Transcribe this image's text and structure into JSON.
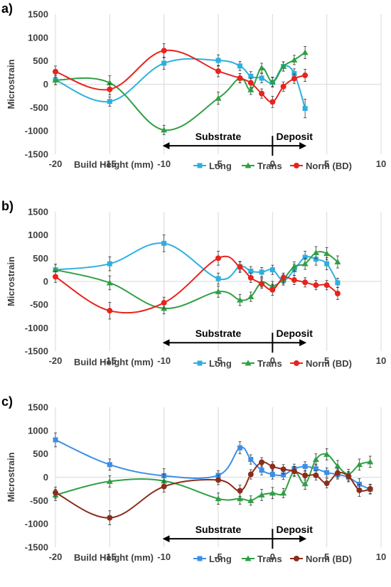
{
  "chart_data": [
    {
      "type": "line",
      "panel_label": "a)",
      "xlabel": "Build Height (mm)",
      "ylabel": "Microstrain",
      "xlim": [
        -20,
        10
      ],
      "ylim": [
        -1500,
        1500
      ],
      "xticks": [
        "-20",
        "-15",
        "-10",
        "-5",
        "0",
        "5",
        "10"
      ],
      "yticks": [
        "1500",
        "1000",
        "500",
        "0",
        "-500",
        "-1000",
        "-1500"
      ],
      "grid": "vertical",
      "legend_position": "bottom",
      "annotations": {
        "substrate": "Substrate",
        "deposit": "Deposit"
      },
      "series": [
        {
          "name": "Long",
          "color": "#2bb0e0",
          "marker": "square",
          "x": [
            -20,
            -15,
            -10,
            -5,
            -3,
            -2,
            -1,
            0,
            1,
            2,
            3
          ],
          "y": [
            90,
            -370,
            450,
            510,
            390,
            170,
            130,
            40,
            380,
            230,
            -520
          ],
          "err": [
            100,
            100,
            130,
            120,
            100,
            100,
            100,
            100,
            100,
            100,
            200
          ]
        },
        {
          "name": "Trans",
          "color": "#2ea043",
          "marker": "triangle",
          "x": [
            -20,
            -15,
            -10,
            -5,
            -3,
            -2,
            -1,
            0,
            1,
            2,
            3
          ],
          "y": [
            90,
            30,
            -980,
            -300,
            130,
            -120,
            350,
            50,
            380,
            520,
            680
          ],
          "err": [
            100,
            150,
            100,
            130,
            100,
            100,
            100,
            100,
            100,
            100,
            130
          ]
        },
        {
          "name": "Norm (BD)",
          "color": "#e8231e",
          "marker": "circle",
          "x": [
            -20,
            -15,
            -10,
            -5,
            -3,
            -2,
            -1,
            0,
            1,
            2,
            3
          ],
          "y": [
            270,
            -110,
            720,
            280,
            130,
            30,
            -200,
            -380,
            -50,
            120,
            190
          ],
          "err": [
            120,
            120,
            150,
            120,
            100,
            100,
            100,
            120,
            100,
            100,
            130
          ]
        }
      ]
    },
    {
      "type": "line",
      "panel_label": "b)",
      "xlabel": "Build Height (mm)",
      "ylabel": "Microstrain",
      "xlim": [
        -20,
        10
      ],
      "ylim": [
        -1500,
        1500
      ],
      "xticks": [
        "-20",
        "-15",
        "-10",
        "-5",
        "0",
        "5",
        "10"
      ],
      "yticks": [
        "1500",
        "1000",
        "500",
        "0",
        "-500",
        "-1000",
        "-1500"
      ],
      "grid": "vertical",
      "legend_position": "bottom",
      "annotations": {
        "substrate": "Substrate",
        "deposit": "Deposit"
      },
      "series": [
        {
          "name": "Long",
          "color": "#2bb0e0",
          "marker": "square",
          "x": [
            -20,
            -15,
            -10,
            -5,
            -3,
            -2,
            -1,
            0,
            1,
            2,
            3,
            4,
            5,
            6
          ],
          "y": [
            250,
            380,
            820,
            60,
            320,
            220,
            200,
            250,
            20,
            250,
            520,
            480,
            380,
            -30
          ],
          "err": [
            120,
            150,
            180,
            120,
            100,
            100,
            100,
            100,
            100,
            120,
            130,
            130,
            130,
            100
          ]
        },
        {
          "name": "Trans",
          "color": "#2ea043",
          "marker": "triangle",
          "x": [
            -20,
            -15,
            -10,
            -5,
            -3,
            -2,
            -1,
            0,
            1,
            2,
            3,
            4,
            5,
            6
          ],
          "y": [
            250,
            -30,
            -580,
            -220,
            -400,
            -330,
            -20,
            -100,
            50,
            320,
            380,
            620,
            600,
            420
          ],
          "err": [
            120,
            150,
            120,
            120,
            120,
            100,
            100,
            100,
            100,
            100,
            120,
            130,
            130,
            130
          ]
        },
        {
          "name": "Norm (BD)",
          "color": "#e8231e",
          "marker": "circle",
          "x": [
            -20,
            -15,
            -10,
            -5,
            -3,
            -2,
            -1,
            0,
            1,
            2,
            3,
            4,
            5,
            6
          ],
          "y": [
            100,
            -630,
            -460,
            500,
            310,
            80,
            -50,
            -180,
            80,
            30,
            -20,
            -80,
            -80,
            -260
          ],
          "err": [
            120,
            180,
            120,
            150,
            120,
            100,
            100,
            120,
            100,
            100,
            100,
            100,
            100,
            130
          ]
        }
      ]
    },
    {
      "type": "line",
      "panel_label": "c)",
      "xlabel": "Build Height (mm)",
      "ylabel": "Microstrain",
      "xlim": [
        -20,
        10
      ],
      "ylim": [
        -1500,
        1500
      ],
      "xticks": [
        "-20",
        "-15",
        "-10",
        "-5",
        "0",
        "5",
        "10"
      ],
      "yticks": [
        "1500",
        "1000",
        "500",
        "0",
        "-500",
        "-1000",
        "-1500"
      ],
      "grid": "vertical",
      "legend_position": "bottom",
      "annotations": {
        "substrate": "Substrate",
        "deposit": "Deposit"
      },
      "series": [
        {
          "name": "Long",
          "color": "#3b8ee8",
          "marker": "square",
          "x": [
            -20,
            -15,
            -10,
            -5,
            -3,
            -2,
            -1,
            0,
            1,
            2,
            3,
            4,
            5,
            6,
            7,
            8,
            9
          ],
          "y": [
            800,
            270,
            30,
            40,
            630,
            380,
            150,
            60,
            50,
            180,
            230,
            180,
            100,
            60,
            0,
            -150,
            -260
          ],
          "err": [
            150,
            120,
            150,
            100,
            130,
            100,
            100,
            100,
            100,
            100,
            100,
            100,
            100,
            100,
            100,
            120,
            100
          ]
        },
        {
          "name": "Trans",
          "color": "#2ea043",
          "marker": "triangle",
          "x": [
            -20,
            -15,
            -10,
            -5,
            -3,
            -2,
            -1,
            0,
            1,
            2,
            3,
            4,
            5,
            6,
            7,
            8,
            9
          ],
          "y": [
            -380,
            -90,
            -80,
            -460,
            -460,
            -500,
            -380,
            -340,
            -340,
            120,
            -140,
            380,
            490,
            240,
            70,
            270,
            330
          ],
          "err": [
            120,
            120,
            150,
            120,
            120,
            100,
            120,
            120,
            100,
            100,
            120,
            120,
            120,
            120,
            100,
            120,
            120
          ]
        },
        {
          "name": "Norm (BD)",
          "color": "#8b2d1a",
          "marker": "circle",
          "x": [
            -20,
            -15,
            -10,
            -5,
            -3,
            -2,
            -1,
            0,
            1,
            2,
            3,
            4,
            5,
            6,
            7,
            8,
            9
          ],
          "y": [
            -330,
            -870,
            -200,
            -60,
            -290,
            60,
            320,
            230,
            170,
            130,
            40,
            40,
            -130,
            90,
            20,
            -280,
            -250
          ],
          "err": [
            120,
            150,
            120,
            100,
            120,
            100,
            100,
            100,
            100,
            100,
            100,
            100,
            100,
            100,
            100,
            130,
            100
          ]
        }
      ]
    }
  ]
}
